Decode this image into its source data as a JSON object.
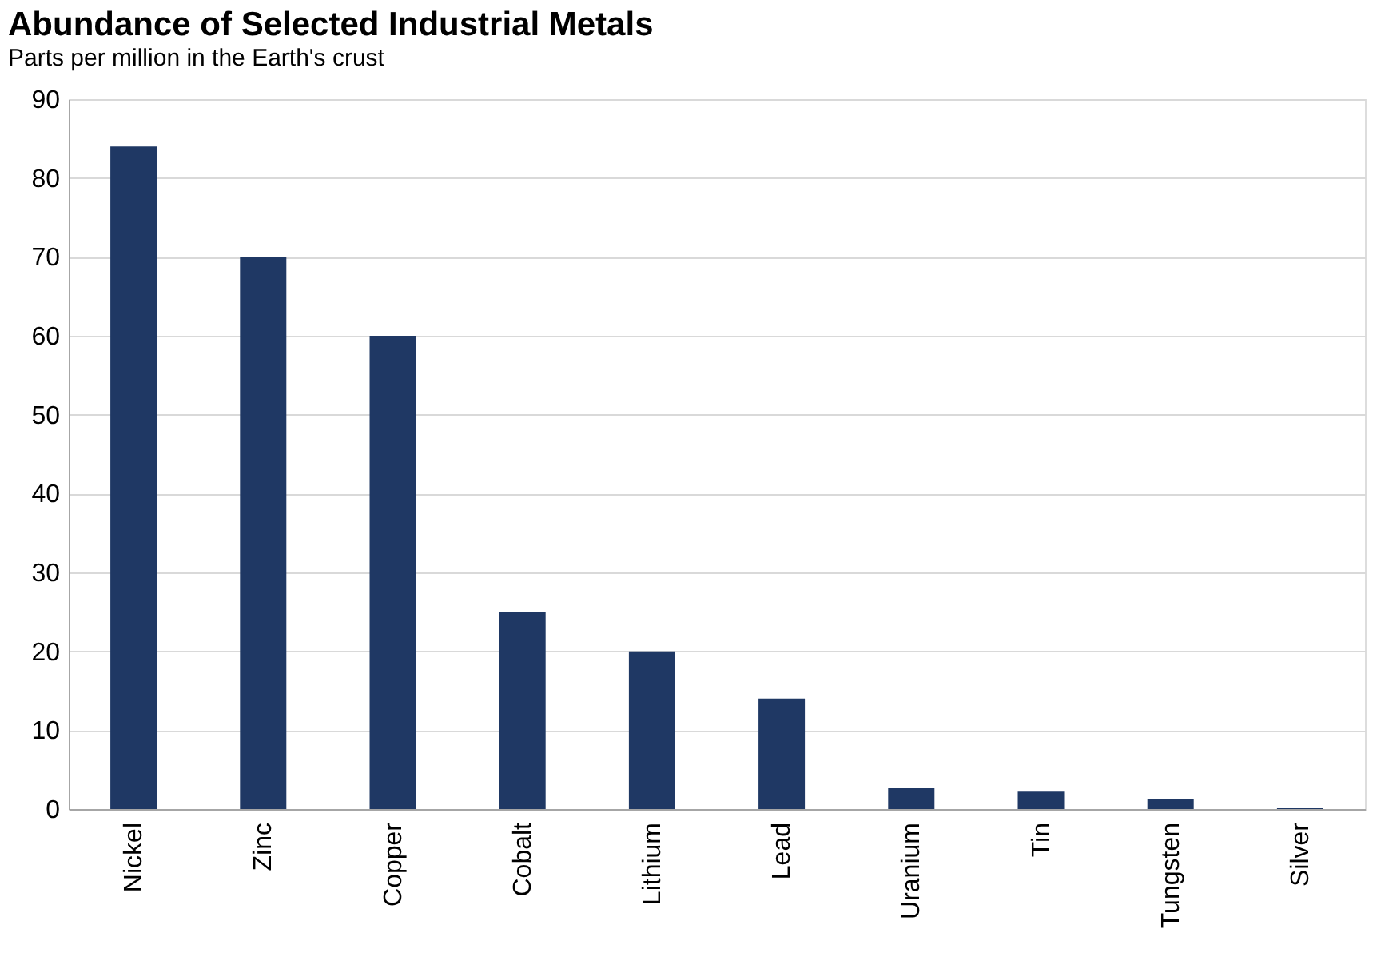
{
  "chart_data": {
    "type": "bar",
    "title": "Abundance of Selected Industrial Metals",
    "subtitle": "Parts per million in the Earth's crust",
    "categories": [
      "Nickel",
      "Zinc",
      "Copper",
      "Cobalt",
      "Lithium",
      "Lead",
      "Uranium",
      "Tin",
      "Tungsten",
      "Silver"
    ],
    "values": [
      84,
      70,
      60,
      25,
      20,
      14,
      2.7,
      2.3,
      1.3,
      0.1
    ],
    "color": "#1f3864",
    "ylim": [
      0,
      90
    ],
    "yticks": [
      0,
      10,
      20,
      30,
      40,
      50,
      60,
      70,
      80,
      90
    ],
    "grid": "y"
  }
}
